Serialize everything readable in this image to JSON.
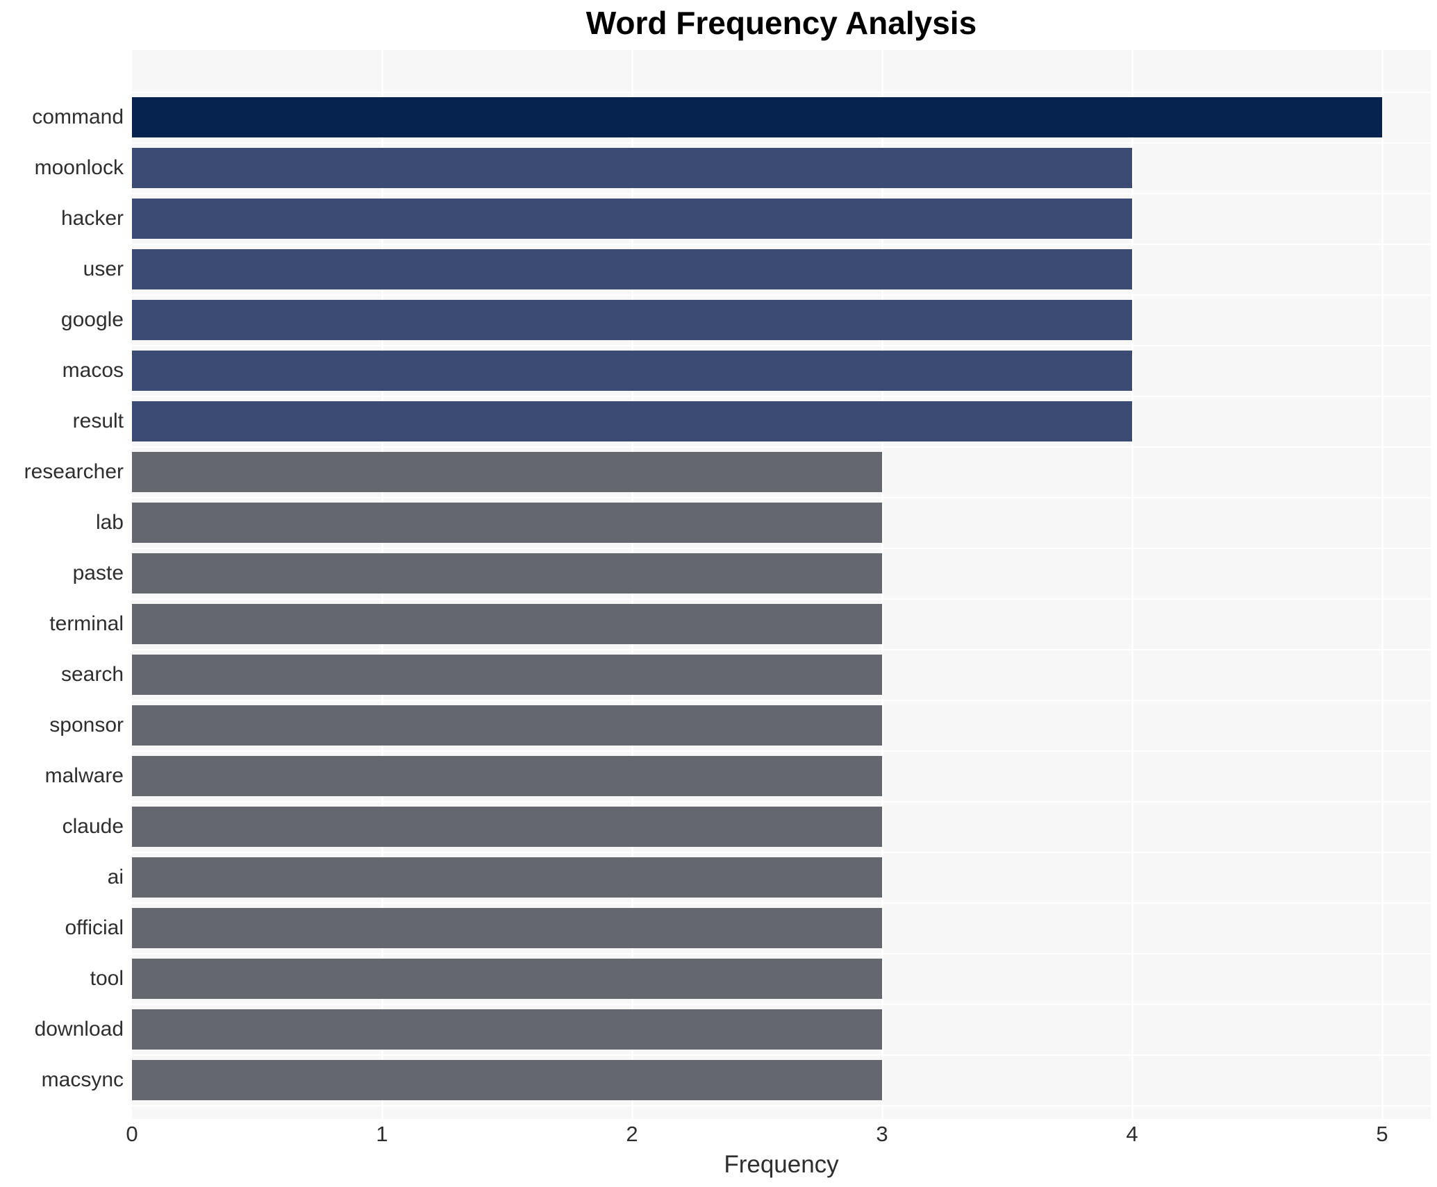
{
  "chart_data": {
    "type": "bar",
    "orientation": "horizontal",
    "title": "Word Frequency Analysis",
    "xlabel": "Frequency",
    "ylabel": "",
    "categories": [
      "command",
      "moonlock",
      "hacker",
      "user",
      "google",
      "macos",
      "result",
      "researcher",
      "lab",
      "paste",
      "terminal",
      "search",
      "sponsor",
      "malware",
      "claude",
      "ai",
      "official",
      "tool",
      "download",
      "macsync"
    ],
    "values": [
      5,
      4,
      4,
      4,
      4,
      4,
      4,
      3,
      3,
      3,
      3,
      3,
      3,
      3,
      3,
      3,
      3,
      3,
      3,
      3
    ],
    "x_ticks": [
      "0",
      "1",
      "2",
      "3",
      "4",
      "5"
    ],
    "xlim": [
      0,
      5.19
    ],
    "grid": true,
    "legend": null,
    "colors": {
      "value_5": "#062350",
      "value_4": "#3b4b73",
      "value_3": "#65676f",
      "plot_background": "#f7f7f7",
      "gridline": "#ffffff",
      "text": "#2e2e2e",
      "title_text": "#000000"
    }
  }
}
